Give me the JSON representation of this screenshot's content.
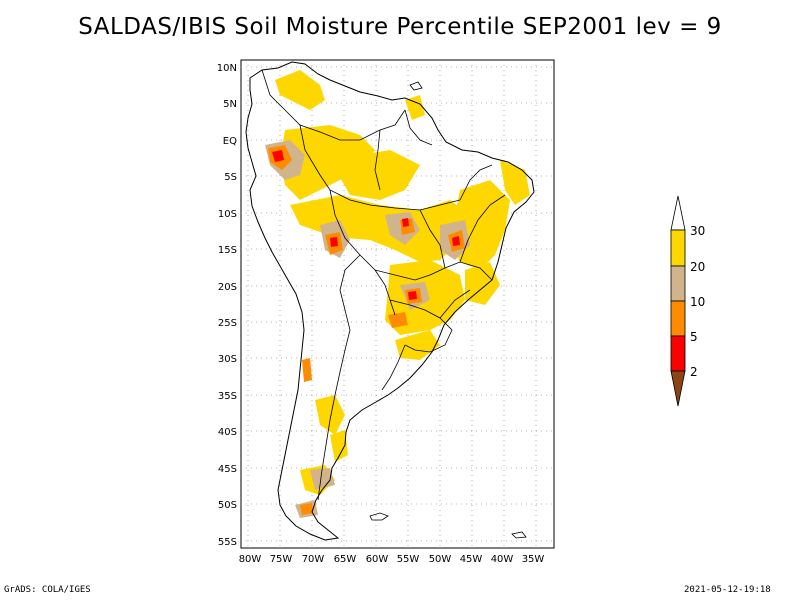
{
  "title": "SALDAS/IBIS Soil Moisture Percentile SEP2001 lev = 9",
  "footer": {
    "left": "GrADS: COLA/IGES",
    "right": "2021-05-12-19:18"
  },
  "map": {
    "lat_ticks": [
      "10N",
      "5N",
      "EQ",
      "5S",
      "10S",
      "15S",
      "20S",
      "25S",
      "30S",
      "35S",
      "40S",
      "45S",
      "50S",
      "55S"
    ],
    "lon_ticks": [
      "80W",
      "75W",
      "70W",
      "65W",
      "60W",
      "55W",
      "50W",
      "45W",
      "40W",
      "35W"
    ],
    "grid": "dotted",
    "domain_lon": [
      -80,
      -34
    ],
    "domain_lat": [
      -56,
      12
    ]
  },
  "colorbar": {
    "labels": [
      "30",
      "20",
      "10",
      "5",
      "2"
    ],
    "colors": {
      "above_30": "#ffffff",
      "20_30": "#ffd700",
      "10_20": "#d2b48c",
      "5_10": "#ff8c00",
      "2_5": "#ff0000",
      "below_2": "#8b4513"
    }
  }
}
